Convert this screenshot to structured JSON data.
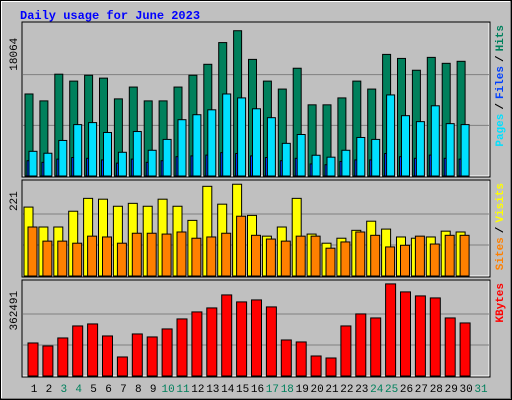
{
  "chart_data": {
    "type": "bar",
    "title": "Daily usage for June 2023",
    "title_color": "#0000ff",
    "legend_separator": "/",
    "categories": [
      "1",
      "2",
      "3",
      "4",
      "5",
      "6",
      "7",
      "8",
      "9",
      "10",
      "11",
      "12",
      "13",
      "14",
      "15",
      "16",
      "17",
      "18",
      "19",
      "20",
      "21",
      "22",
      "23",
      "24",
      "25",
      "26",
      "27",
      "28",
      "29",
      "30",
      "31"
    ],
    "category_colors": [
      "#000000",
      "#000000",
      "#00805c",
      "#00805c",
      "#000000",
      "#000000",
      "#000000",
      "#000000",
      "#000000",
      "#00805c",
      "#00805c",
      "#000000",
      "#000000",
      "#000000",
      "#000000",
      "#000000",
      "#00805c",
      "#00805c",
      "#000000",
      "#000000",
      "#000000",
      "#000000",
      "#000000",
      "#00805c",
      "#00805c",
      "#000000",
      "#000000",
      "#000000",
      "#000000",
      "#000000",
      "#00805c"
    ],
    "panels": [
      {
        "ylim": [
          0,
          18900
        ],
        "yticks": [
          18064
        ],
        "series": [
          {
            "name": "Hits",
            "color": "#00805c",
            "values": [
              10200,
              9340,
              12660,
              11800,
              12530,
              12170,
              9590,
              11060,
              9340,
              9340,
              11060,
              12530,
              13890,
              16590,
              18064,
              14500,
              11800,
              10810,
              13400,
              8850,
              8850,
              9710,
              11800,
              10810,
              15120,
              14620,
              13150,
              14750,
              14010,
              14260,
              null
            ]
          },
          {
            "name": "Files",
            "color": "#0040ff",
            "values": [
              1900,
              1700,
              2100,
              2300,
              2200,
              2000,
              1600,
              2100,
              1700,
              1900,
              2400,
              2500,
              2600,
              2900,
              2800,
              2500,
              2300,
              1900,
              2200,
              1500,
              1400,
              1800,
              2000,
              2000,
              2800,
              2400,
              2200,
              2600,
              2200,
              2100,
              null
            ]
          },
          {
            "name": "Pages",
            "color": "#00e0ff",
            "values": [
              3070,
              2830,
              4420,
              6390,
              6640,
              5410,
              2950,
              5530,
              3200,
              4550,
              7000,
              7620,
              8230,
              10200,
              9710,
              8360,
              7250,
              4060,
              5160,
              2580,
              2340,
              3200,
              4790,
              4550,
              10080,
              7500,
              6760,
              8730,
              6510,
              6390,
              null
            ]
          }
        ]
      },
      {
        "ylim": [
          0,
          224
        ],
        "yticks": [
          221
        ],
        "series": [
          {
            "name": "Visits",
            "color": "#ffff00",
            "values": [
              166,
              118,
              118,
              156,
              187,
              185,
              168,
              175,
              168,
              185,
              168,
              134,
              216,
              173,
              221,
              146,
              96,
              118,
              187,
              101,
              79,
              91,
              110,
              132,
              113,
              94,
              91,
              94,
              108,
              106,
              null
            ]
          },
          {
            "name": "Sites",
            "color": "#ff8000",
            "values": [
              118,
              84,
              84,
              79,
              96,
              94,
              79,
              103,
              103,
              101,
              106,
              91,
              94,
              103,
              144,
              98,
              89,
              84,
              96,
              96,
              67,
              82,
              106,
              98,
              70,
              74,
              96,
              77,
              98,
              98,
              null
            ]
          }
        ]
      },
      {
        "ylim": [
          0,
          366000
        ],
        "yticks": [
          362491
        ],
        "series": [
          {
            "name": "KBytes",
            "color": "#ff0000",
            "values": [
              130000,
              118200,
              149700,
              197000,
              204900,
              157600,
              74900,
              165500,
              153700,
              185200,
              224600,
              252200,
              267900,
              319100,
              291600,
              299400,
              271900,
              141800,
              134000,
              78800,
              70900,
              197000,
              244300,
              228500,
              362491,
              331000,
              315200,
              307300,
              228500,
              208800,
              null
            ]
          }
        ]
      }
    ]
  }
}
